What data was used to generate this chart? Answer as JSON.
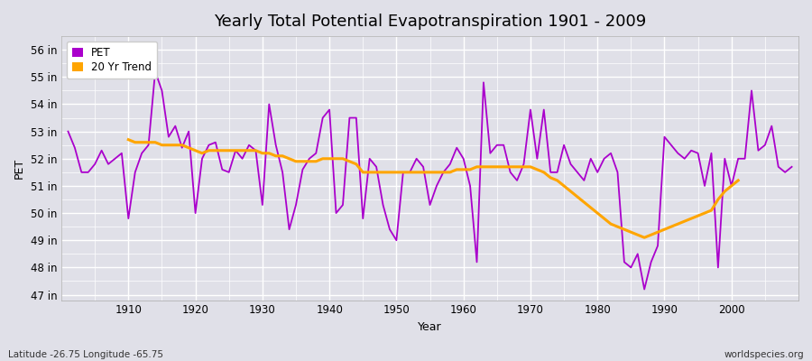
{
  "title": "Yearly Total Potential Evapotranspiration 1901 - 2009",
  "ylabel": "PET",
  "xlabel": "Year",
  "footnote_left": "Latitude -26.75 Longitude -65.75",
  "footnote_right": "worldspecies.org",
  "legend_labels": [
    "PET",
    "20 Yr Trend"
  ],
  "pet_color": "#AA00CC",
  "trend_color": "#FFA500",
  "bg_color": "#E0E0E8",
  "plot_bg_color": "#E0E0E8",
  "ylim": [
    46.8,
    56.5
  ],
  "yticks": [
    47,
    48,
    49,
    50,
    51,
    52,
    53,
    54,
    55,
    56
  ],
  "ytick_labels": [
    "47 in",
    "48 in",
    "49 in",
    "50 in",
    "51 in",
    "52 in",
    "53 in",
    "54 in",
    "55 in",
    "56 in"
  ],
  "xticks": [
    1910,
    1920,
    1930,
    1940,
    1950,
    1960,
    1970,
    1980,
    1990,
    2000
  ],
  "years": [
    1901,
    1902,
    1903,
    1904,
    1905,
    1906,
    1907,
    1908,
    1909,
    1910,
    1911,
    1912,
    1913,
    1914,
    1915,
    1916,
    1917,
    1918,
    1919,
    1920,
    1921,
    1922,
    1923,
    1924,
    1925,
    1926,
    1927,
    1928,
    1929,
    1930,
    1931,
    1932,
    1933,
    1934,
    1935,
    1936,
    1937,
    1938,
    1939,
    1940,
    1941,
    1942,
    1943,
    1944,
    1945,
    1946,
    1947,
    1948,
    1949,
    1950,
    1951,
    1952,
    1953,
    1954,
    1955,
    1956,
    1957,
    1958,
    1959,
    1960,
    1961,
    1962,
    1963,
    1964,
    1965,
    1966,
    1967,
    1968,
    1969,
    1970,
    1971,
    1972,
    1973,
    1974,
    1975,
    1976,
    1977,
    1978,
    1979,
    1980,
    1981,
    1982,
    1983,
    1984,
    1985,
    1986,
    1987,
    1988,
    1989,
    1990,
    1991,
    1992,
    1993,
    1994,
    1995,
    1996,
    1997,
    1998,
    1999,
    2000,
    2001,
    2002,
    2003,
    2004,
    2005,
    2006,
    2007,
    2008,
    2009
  ],
  "pet_values": [
    53.0,
    52.4,
    51.5,
    51.5,
    51.8,
    52.3,
    51.8,
    52.0,
    52.2,
    49.8,
    51.5,
    52.2,
    52.5,
    55.2,
    54.5,
    52.8,
    53.2,
    52.4,
    53.0,
    50.0,
    52.0,
    52.5,
    52.6,
    51.6,
    51.5,
    52.3,
    52.0,
    52.5,
    52.3,
    50.3,
    54.0,
    52.5,
    51.5,
    49.4,
    50.3,
    51.6,
    52.0,
    52.2,
    53.5,
    53.8,
    50.0,
    50.3,
    53.5,
    53.5,
    49.8,
    52.0,
    51.7,
    50.3,
    49.4,
    49.0,
    51.5,
    51.5,
    52.0,
    51.7,
    50.3,
    51.0,
    51.5,
    51.8,
    52.4,
    52.0,
    51.0,
    48.2,
    54.8,
    52.2,
    52.5,
    52.5,
    51.5,
    51.2,
    51.8,
    53.8,
    52.0,
    53.8,
    51.5,
    51.5,
    52.5,
    51.8,
    51.5,
    51.2,
    52.0,
    51.5,
    52.0,
    52.2,
    51.5,
    48.2,
    48.0,
    48.5,
    47.2,
    48.2,
    48.8,
    52.8,
    52.5,
    52.2,
    52.0,
    52.3,
    52.2,
    51.0,
    52.2,
    48.0,
    52.0,
    51.0,
    52.0,
    52.0,
    54.5,
    52.3,
    52.5,
    53.2,
    51.7,
    51.5,
    51.7
  ],
  "trend_values": [
    null,
    null,
    null,
    null,
    null,
    null,
    null,
    null,
    null,
    52.7,
    52.6,
    52.6,
    52.6,
    52.6,
    52.5,
    52.5,
    52.5,
    52.5,
    52.4,
    52.3,
    52.2,
    52.3,
    52.3,
    52.3,
    52.3,
    52.3,
    52.3,
    52.3,
    52.3,
    52.2,
    52.2,
    52.1,
    52.1,
    52.0,
    51.9,
    51.9,
    51.9,
    51.9,
    52.0,
    52.0,
    52.0,
    52.0,
    51.9,
    51.8,
    51.5,
    51.5,
    51.5,
    51.5,
    51.5,
    51.5,
    51.5,
    51.5,
    51.5,
    51.5,
    51.5,
    51.5,
    51.5,
    51.5,
    51.6,
    51.6,
    51.6,
    51.7,
    51.7,
    51.7,
    51.7,
    51.7,
    51.7,
    51.7,
    51.7,
    51.7,
    51.6,
    51.5,
    51.3,
    51.2,
    51.0,
    50.8,
    50.6,
    50.4,
    50.2,
    50.0,
    49.8,
    49.6,
    49.5,
    49.4,
    49.3,
    49.2,
    49.1,
    49.2,
    49.3,
    49.4,
    49.5,
    49.6,
    49.7,
    49.8,
    49.9,
    50.0,
    50.1,
    50.5,
    50.8,
    51.0,
    51.2,
    null,
    null,
    null,
    null,
    null,
    null,
    null,
    null
  ]
}
